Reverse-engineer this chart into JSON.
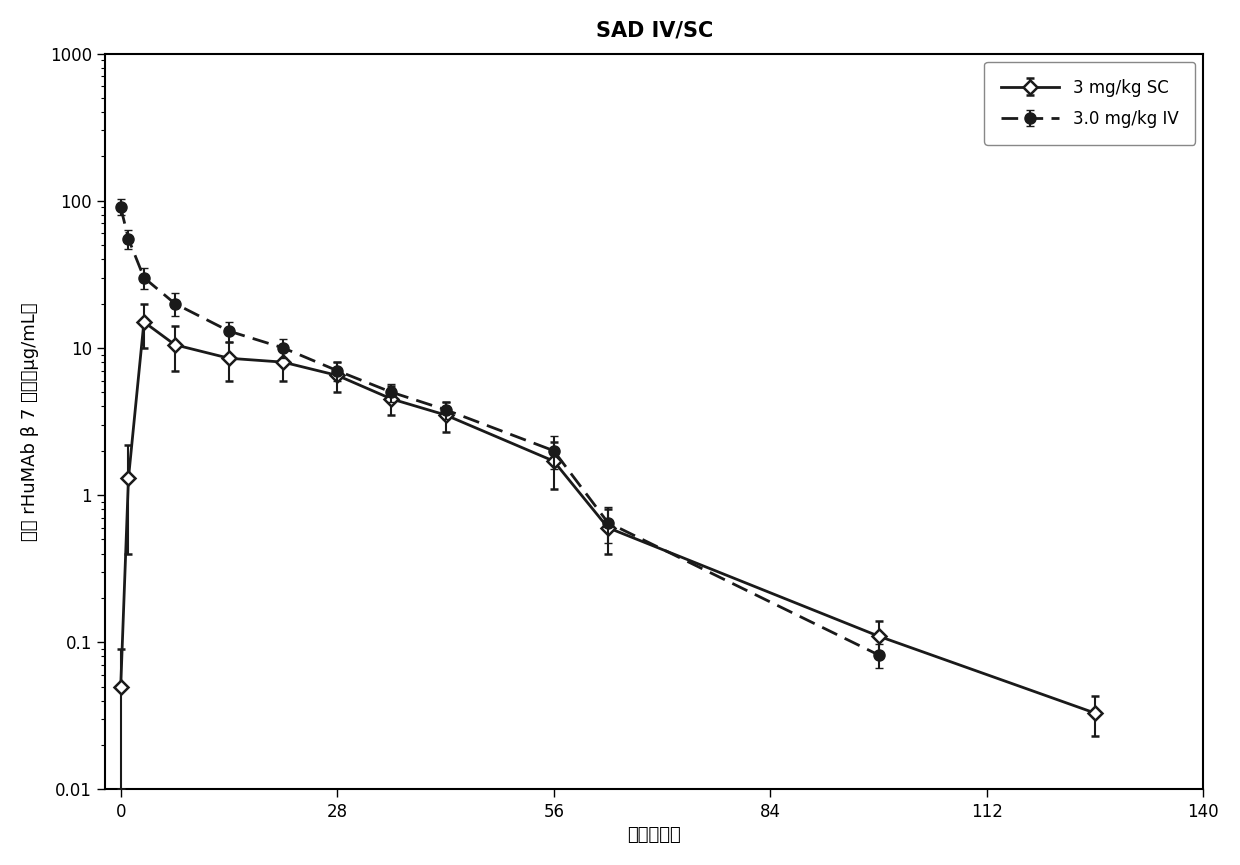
{
  "title": "SAD IV/SC",
  "xlabel": "时间（天）",
  "ylabel": "血清 rHuMAb β 7 浓度（μg/mL）",
  "xlim": [
    -2,
    140
  ],
  "ylim_log": [
    0.01,
    1000
  ],
  "xticks": [
    0,
    28,
    56,
    84,
    112,
    140
  ],
  "iv_x": [
    0,
    1,
    3,
    7,
    14,
    21,
    28,
    35,
    42,
    56,
    63,
    98
  ],
  "iv_y": [
    90.0,
    55.0,
    30.0,
    20.0,
    13.0,
    10.0,
    7.0,
    5.0,
    3.8,
    2.0,
    0.65,
    0.082
  ],
  "iv_ylo": [
    10.0,
    8.0,
    5.0,
    3.5,
    2.0,
    1.5,
    1.0,
    0.7,
    0.5,
    0.5,
    0.18,
    0.015
  ],
  "iv_yhi": [
    12.0,
    8.0,
    5.0,
    3.5,
    2.0,
    1.5,
    1.0,
    0.7,
    0.5,
    0.5,
    0.18,
    0.015
  ],
  "sc_x": [
    0,
    1,
    3,
    7,
    14,
    21,
    28,
    35,
    42,
    56,
    63,
    98,
    126
  ],
  "sc_y": [
    0.05,
    1.3,
    15.0,
    10.5,
    8.5,
    8.0,
    6.5,
    4.5,
    3.5,
    1.7,
    0.6,
    0.11,
    0.033
  ],
  "sc_ylo": [
    0.04,
    0.9,
    5.0,
    3.5,
    2.5,
    2.0,
    1.5,
    1.0,
    0.8,
    0.6,
    0.2,
    0.03,
    0.01
  ],
  "sc_yhi": [
    0.04,
    0.9,
    5.0,
    3.5,
    2.5,
    2.0,
    1.5,
    1.0,
    0.8,
    0.6,
    0.2,
    0.03,
    0.01
  ],
  "iv_color": "#1a1a1a",
  "sc_color": "#1a1a1a",
  "iv_label": "3.0 mg/kg IV",
  "sc_label": "3 mg/kg SC",
  "bg_color": "#ffffff",
  "title_fontsize": 15,
  "label_fontsize": 13,
  "tick_fontsize": 12,
  "legend_fontsize": 12
}
